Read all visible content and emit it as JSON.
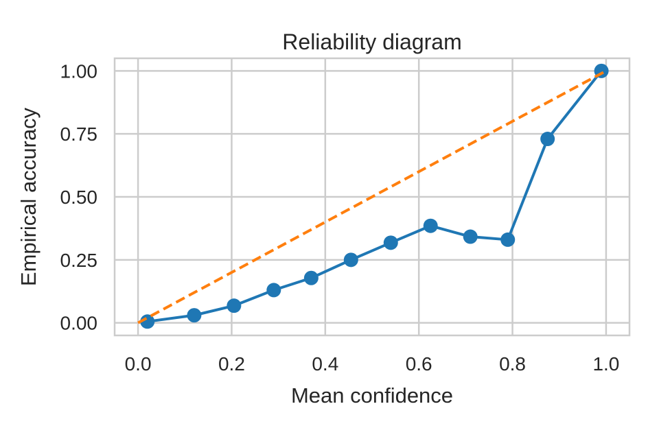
{
  "chart_data": {
    "type": "line",
    "title": "Reliability diagram",
    "xlabel": "Mean confidence",
    "ylabel": "Empirical accuracy",
    "xlim": [
      -0.05,
      1.05
    ],
    "ylim": [
      -0.05,
      1.05
    ],
    "x_ticks": [
      0.0,
      0.2,
      0.4,
      0.6,
      0.8,
      1.0
    ],
    "x_tick_labels": [
      "0.0",
      "0.2",
      "0.4",
      "0.6",
      "0.8",
      "1.0"
    ],
    "y_ticks": [
      0.0,
      0.25,
      0.5,
      0.75,
      1.0
    ],
    "y_tick_labels": [
      "0.00",
      "0.25",
      "0.50",
      "0.75",
      "1.00"
    ],
    "grid": true,
    "series": [
      {
        "style": "solid-with-markers",
        "color": "#1f77b4",
        "x": [
          0.02,
          0.12,
          0.205,
          0.29,
          0.37,
          0.455,
          0.54,
          0.625,
          0.71,
          0.79,
          0.875,
          0.99
        ],
        "y": [
          0.005,
          0.03,
          0.068,
          0.13,
          0.178,
          0.25,
          0.318,
          0.385,
          0.342,
          0.33,
          0.73,
          1.0
        ]
      },
      {
        "style": "dashed",
        "color": "#ff7f0e",
        "x": [
          0.0,
          1.0
        ],
        "y": [
          0.0,
          1.0
        ]
      }
    ]
  }
}
